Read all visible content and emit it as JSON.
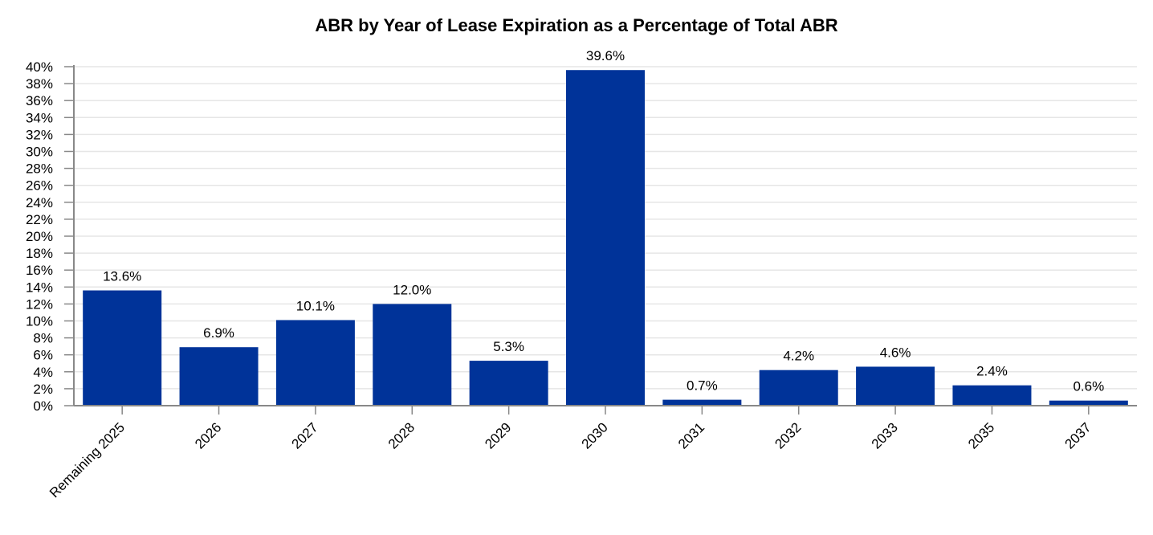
{
  "chart_data": {
    "type": "bar",
    "title": "ABR by Year of Lease Expiration as a Percentage of Total ABR",
    "xlabel": "",
    "ylabel": "",
    "categories": [
      "Remaining 2025",
      "2026",
      "2027",
      "2028",
      "2029",
      "2030",
      "2031",
      "2032",
      "2033",
      "2035",
      "2037"
    ],
    "values": [
      13.6,
      6.9,
      10.1,
      12.0,
      5.3,
      39.6,
      0.7,
      4.2,
      4.6,
      2.4,
      0.6
    ],
    "data_labels": [
      "13.6%",
      "6.9%",
      "10.1%",
      "12.0%",
      "5.3%",
      "39.6%",
      "0.7%",
      "4.2%",
      "4.6%",
      "2.4%",
      "0.6%"
    ],
    "ylim": [
      0,
      40
    ],
    "ytick_step": 2,
    "ytick_format": "%",
    "grid": true,
    "legend": "none",
    "colors": {
      "bar": "#003399",
      "grid": "#e6e6e6",
      "axis": "#888888"
    }
  }
}
